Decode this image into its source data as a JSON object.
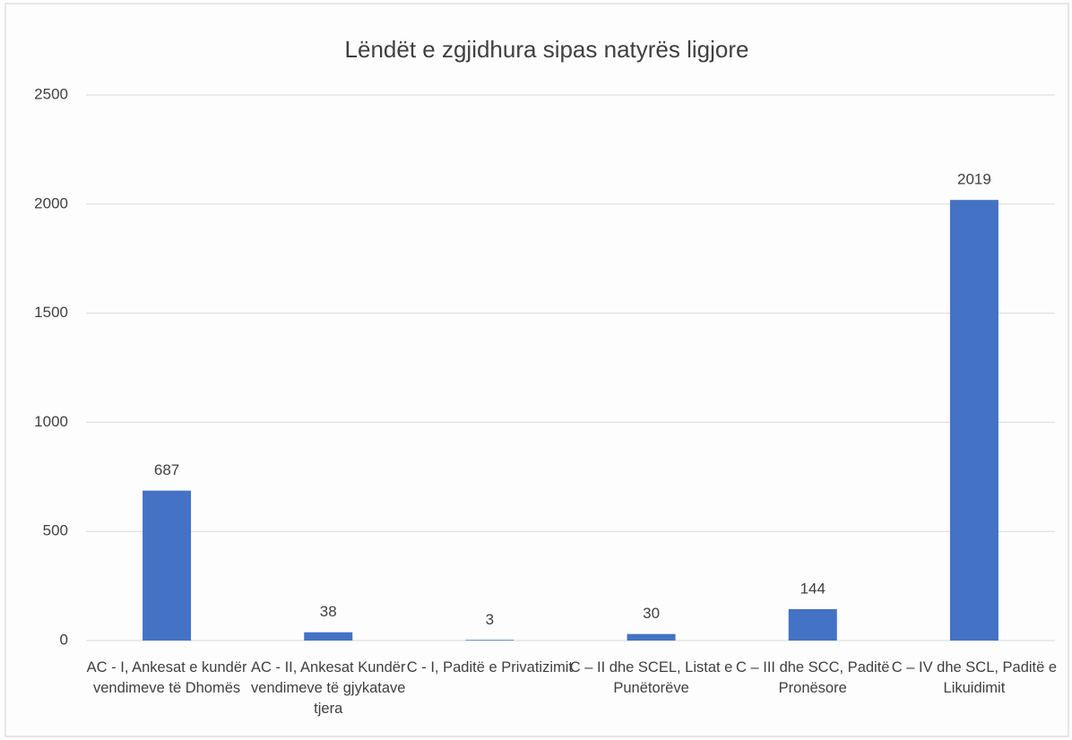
{
  "chart_data": {
    "type": "bar",
    "title": "Lëndët e zgjidhura sipas natyrës ligjore",
    "categories": [
      "AC - I, Ankesat e kundër vendimeve të Dhomës",
      "AC - II, Ankesat Kundër vendimeve të gjykatave tjera",
      "C - I, Paditë e Privatizimit",
      "C – II dhe SCEL, Listat e Punëtorëve",
      "C – III dhe SCC, Paditë Pronësore",
      "C – IV dhe SCL, Paditë e Likuidimit"
    ],
    "values": [
      687,
      38,
      3,
      30,
      144,
      2019
    ],
    "color": "#4472c4",
    "ylim": [
      0,
      2500
    ],
    "yticks": [
      0,
      500,
      1000,
      1500,
      2000,
      2500
    ],
    "grid": true
  }
}
